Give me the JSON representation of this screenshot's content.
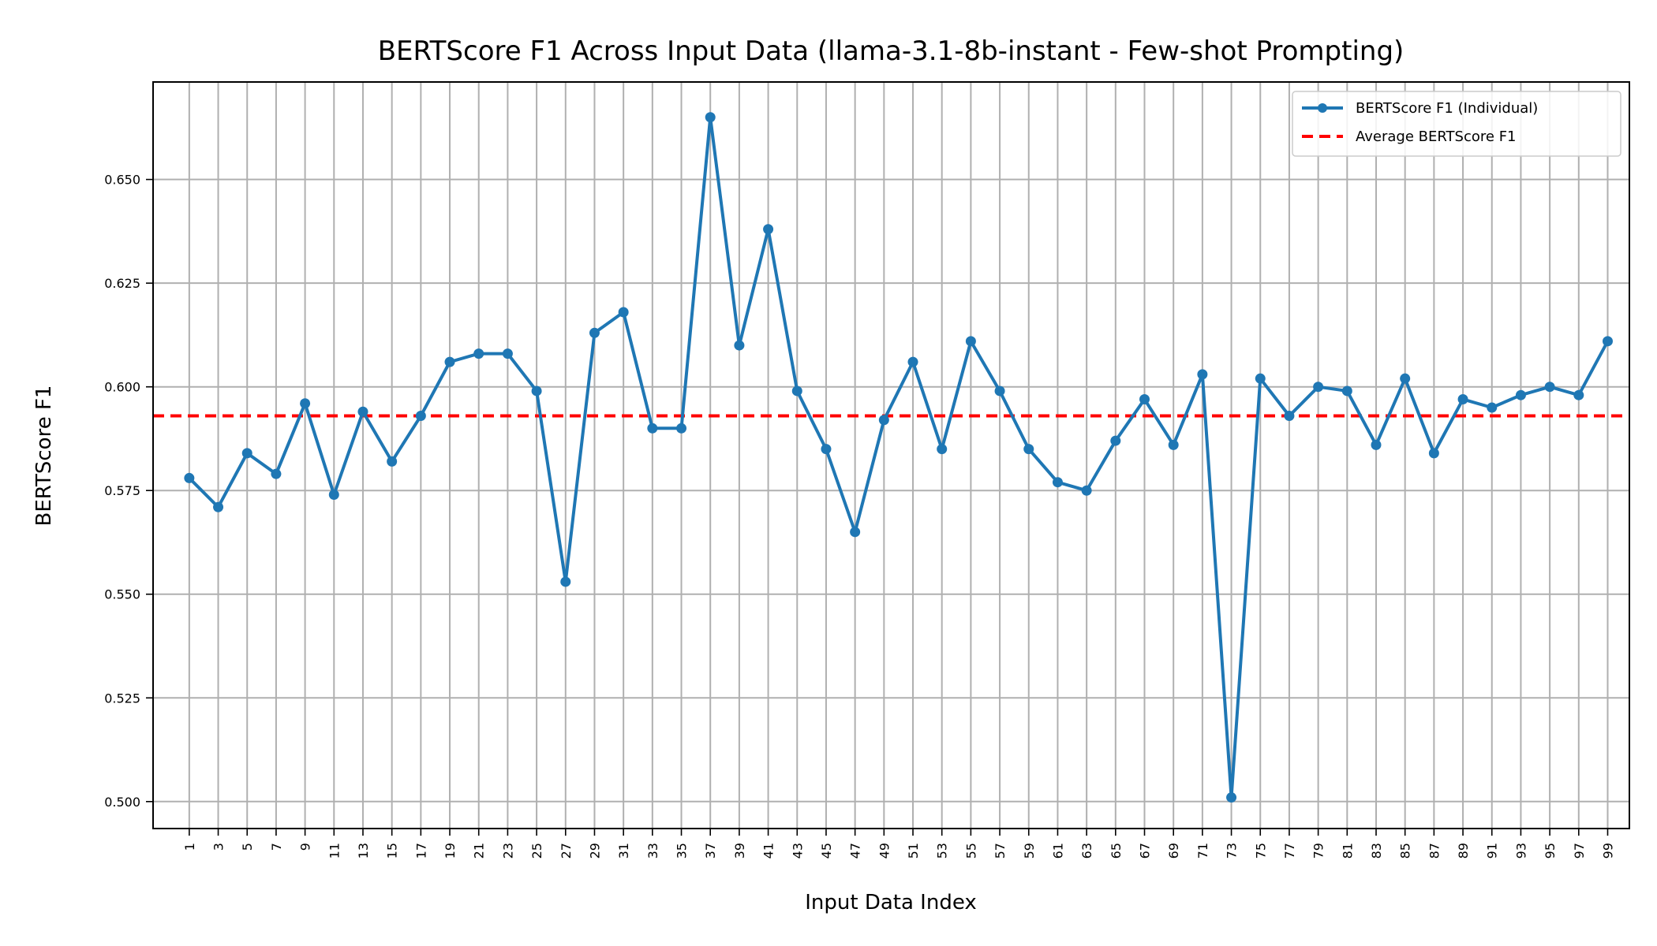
{
  "chart_data": {
    "type": "line",
    "title": "BERTScore F1 Across Input Data (llama-3.1-8b-instant - Few-shot Prompting)",
    "xlabel": "Input Data Index",
    "ylabel": "BERTScore F1",
    "xlim": [
      -1.5,
      100.5
    ],
    "ylim": [
      0.4935,
      0.6735
    ],
    "grid": true,
    "legend_position": "top-right",
    "x_ticks": [
      "1",
      "3",
      "5",
      "7",
      "9",
      "11",
      "13",
      "15",
      "17",
      "19",
      "21",
      "23",
      "25",
      "27",
      "29",
      "31",
      "33",
      "35",
      "37",
      "39",
      "41",
      "43",
      "45",
      "47",
      "49",
      "51",
      "53",
      "55",
      "57",
      "59",
      "61",
      "63",
      "65",
      "67",
      "69",
      "71",
      "73",
      "75",
      "77",
      "79",
      "81",
      "83",
      "85",
      "87",
      "89",
      "91",
      "93",
      "95",
      "97",
      "99"
    ],
    "y_ticks": [
      "0.500",
      "0.525",
      "0.550",
      "0.575",
      "0.600",
      "0.625",
      "0.650"
    ],
    "series": [
      {
        "name": "BERTScore F1 (Individual)",
        "color": "#1f77b4",
        "x": [
          1,
          3,
          5,
          7,
          9,
          11,
          13,
          15,
          17,
          19,
          21,
          23,
          25,
          27,
          29,
          31,
          33,
          35,
          37,
          39,
          41,
          43,
          45,
          47,
          49,
          51,
          53,
          55,
          57,
          59,
          61,
          63,
          65,
          67,
          69,
          71,
          73,
          75,
          77,
          79,
          81,
          83,
          85,
          87,
          89,
          91,
          93,
          95,
          97,
          99
        ],
        "values": [
          0.578,
          0.571,
          0.584,
          0.579,
          0.596,
          0.574,
          0.594,
          0.582,
          0.593,
          0.606,
          0.608,
          0.608,
          0.599,
          0.553,
          0.613,
          0.618,
          0.59,
          0.59,
          0.665,
          0.61,
          0.638,
          0.599,
          0.585,
          0.565,
          0.592,
          0.606,
          0.585,
          0.611,
          0.599,
          0.585,
          0.577,
          0.575,
          0.587,
          0.597,
          0.586,
          0.603,
          0.501,
          0.602,
          0.593,
          0.6,
          0.599,
          0.586,
          0.602,
          0.584,
          0.597,
          0.595,
          0.598,
          0.6,
          0.598,
          0.611
        ]
      }
    ],
    "reference_lines": [
      {
        "name": "Average BERTScore F1",
        "value": 0.593,
        "color": "#ff0000",
        "style": "dashed"
      }
    ]
  }
}
